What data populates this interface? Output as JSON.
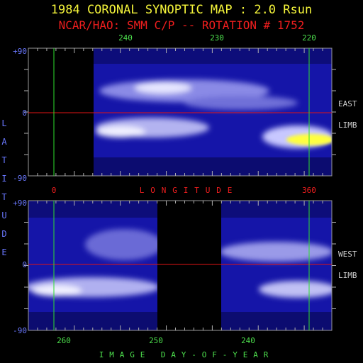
{
  "title": "1984 CORONAL SYNOPTIC MAP : 2.0 Rsun",
  "subtitle": "NCAR/HAO: SMM C/P -- ROTATION # 1752",
  "colors": {
    "title": "#f5f53a",
    "subtitle": "#f01e1e",
    "axis_labels": "#6a78ff",
    "day_labels": "#4de04d",
    "longitude_labels": "#f01e1e",
    "limb_labels": "#cfcfcf",
    "equator_line": "#e01414",
    "marker_lines": "#2ee02e",
    "map_low": "#1010a0",
    "map_high": "#ffff40"
  },
  "y_axis_vertical_label": "LATITUDE",
  "longitude_axis_label": "LONGITUDE",
  "longitude_marks": [
    "0",
    "360"
  ],
  "x_axis_label": "IMAGE DAY-OF-YEAR",
  "chart_data": [
    {
      "type": "heatmap",
      "panel": "east_limb",
      "limb_label_line1": "EAST",
      "limb_label_line2": "LIMB",
      "ylim": [
        -90,
        90
      ],
      "y_tick_labels": [
        "+90",
        "0",
        "-90"
      ],
      "top_day_ticks": [
        "240",
        "230",
        "220"
      ],
      "longitude_marks": [
        "0",
        "360"
      ],
      "data_gaps": [
        "longitude 0 to ~40 (no data)"
      ],
      "features": [
        {
          "name": "brightest streamer",
          "latitude_range": [
            -40,
            -20
          ],
          "longitude_range": [
            320,
            360
          ],
          "level": "max"
        },
        {
          "name": "bright band north",
          "latitude_range": [
            10,
            40
          ],
          "longitude_range": [
            60,
            300
          ],
          "level": "high"
        },
        {
          "name": "bright band south",
          "latitude_range": [
            -30,
            -5
          ],
          "longitude_range": [
            40,
            200
          ],
          "level": "high"
        }
      ]
    },
    {
      "type": "heatmap",
      "panel": "west_limb",
      "limb_label_line1": "WEST",
      "limb_label_line2": "LIMB",
      "ylim": [
        -90,
        90
      ],
      "y_tick_labels": [
        "+90",
        "0",
        "-90"
      ],
      "bottom_day_ticks": [
        "260",
        "250",
        "240"
      ],
      "data_gaps": [
        "image day ~250 to ~245 (no data)"
      ],
      "features": [
        {
          "name": "bright band south",
          "latitude_range": [
            -45,
            -15
          ],
          "level": "high"
        },
        {
          "name": "streamer north",
          "latitude_range": [
            10,
            40
          ],
          "level": "medium"
        }
      ]
    }
  ]
}
